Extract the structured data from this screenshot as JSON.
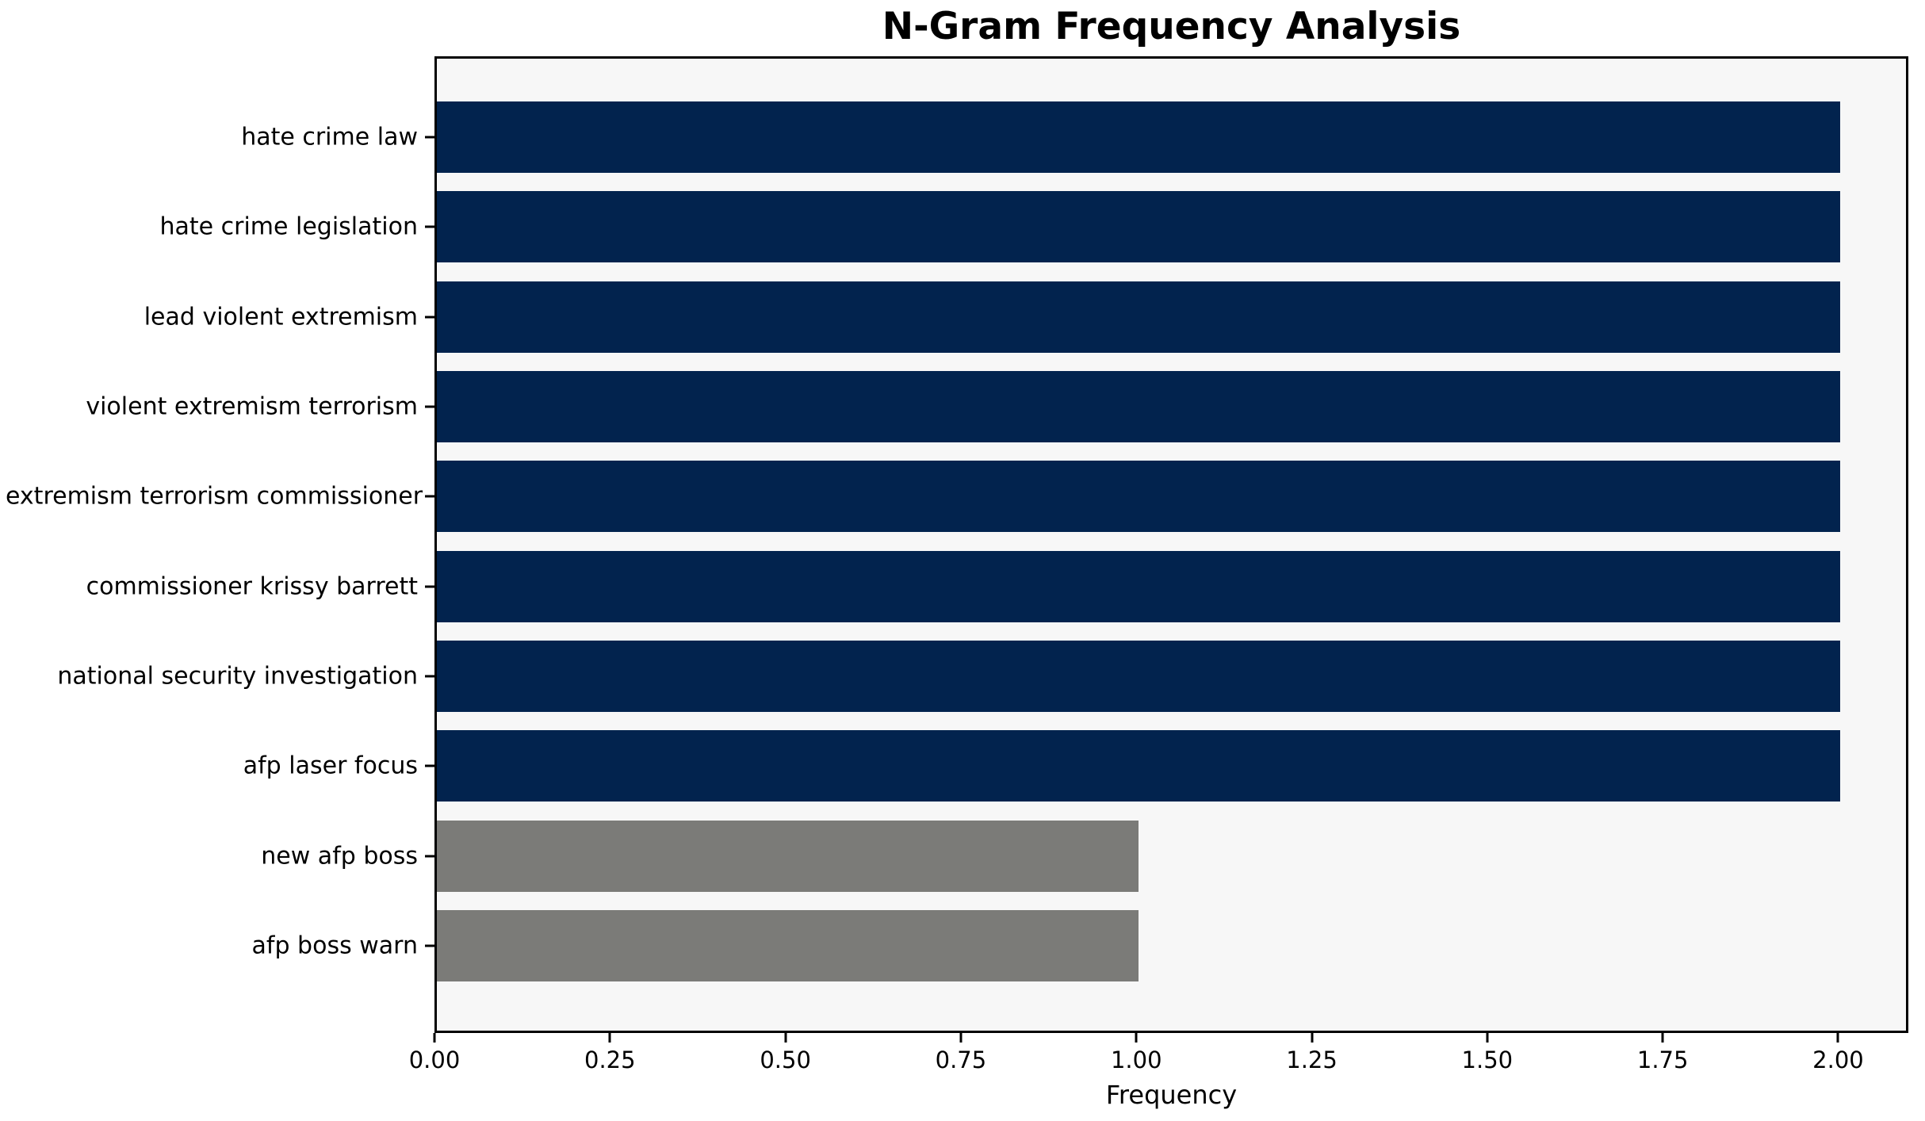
{
  "title": "N-Gram Frequency Analysis",
  "chart_data": {
    "type": "bar",
    "orientation": "horizontal",
    "title": "N-Gram Frequency Analysis",
    "xlabel": "Frequency",
    "ylabel": "",
    "categories": [
      "hate crime law",
      "hate crime legislation",
      "lead violent extremism",
      "violent extremism terrorism",
      "extremism terrorism commissioner",
      "commissioner krissy barrett",
      "national security investigation",
      "afp laser focus",
      "new afp boss",
      "afp boss warn"
    ],
    "values": [
      2,
      2,
      2,
      2,
      2,
      2,
      2,
      2,
      1,
      1
    ],
    "bar_colors": [
      "#02234e",
      "#02234e",
      "#02234e",
      "#02234e",
      "#02234e",
      "#02234e",
      "#02234e",
      "#02234e",
      "#7b7b78",
      "#7b7b78"
    ],
    "xlim": [
      0,
      2.1
    ],
    "xticks": [
      0,
      0.25,
      0.5,
      0.75,
      1.0,
      1.25,
      1.5,
      1.75,
      2.0
    ],
    "xtick_labels": [
      "0.00",
      "0.25",
      "0.50",
      "0.75",
      "1.00",
      "1.25",
      "1.50",
      "1.75",
      "2.00"
    ],
    "grid": false,
    "legend": null,
    "colors": {
      "highlight": "#02234e",
      "muted": "#7b7b78",
      "plot_background": "#f7f7f7",
      "figure_background": "#ffffff",
      "spine": "#000000",
      "text": "#000000"
    }
  }
}
